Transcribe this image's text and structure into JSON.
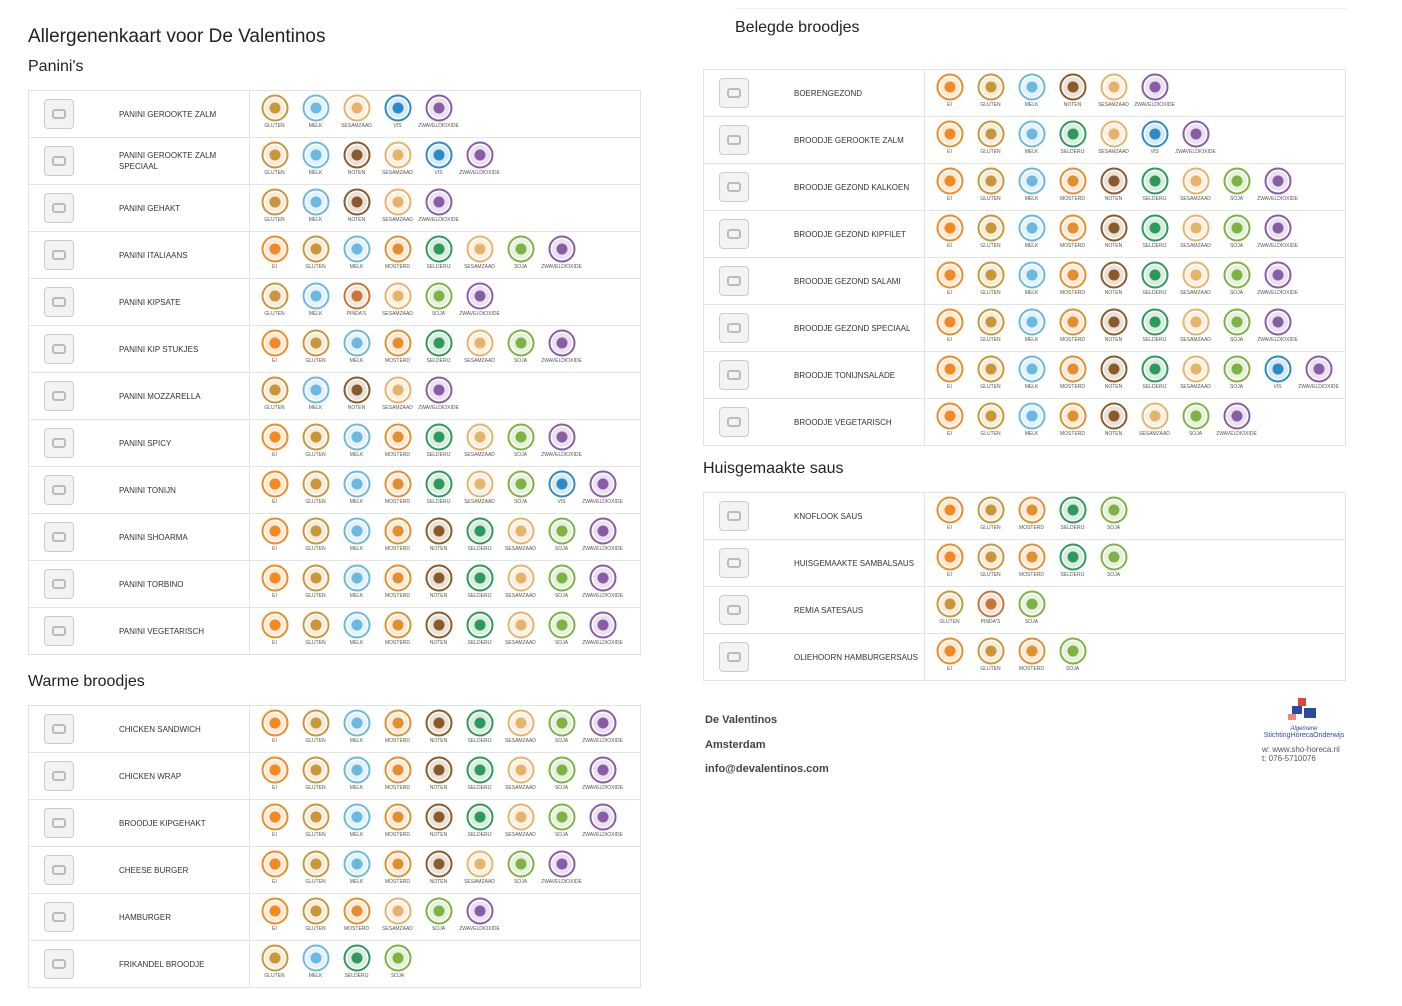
{
  "title": "Allergenenkaart voor De Valentinos",
  "icon_colors": {
    "EI": "#f08a24",
    "GLUTEN": "#c9973a",
    "MELK": "#6bb8e0",
    "MOSTERD": "#e2902f",
    "NOTEN": "#8b5a2b",
    "SELDERIJ": "#2c9a5a",
    "SESAMZAAD": "#e5b36a",
    "SOJA": "#7cb342",
    "VIS": "#2a8bc8",
    "ZWAVELDIOXIDE": "#8a5ca8",
    "PINDA'S": "#c8733a"
  },
  "sections": [
    {
      "name": "Panini's",
      "items": [
        {
          "name": "PANINI GEROOKTE ZALM",
          "allergens": [
            "GLUTEN",
            "MELK",
            "SESAMZAAD",
            "VIS",
            "ZWAVELDIOXIDE"
          ]
        },
        {
          "name": "PANINI GEROOKTE ZALM SPECIAAL",
          "allergens": [
            "GLUTEN",
            "MELK",
            "NOTEN",
            "SESAMZAAD",
            "VIS",
            "ZWAVELDIOXIDE"
          ]
        },
        {
          "name": "PANINI GEHAKT",
          "allergens": [
            "GLUTEN",
            "MELK",
            "NOTEN",
            "SESAMZAAD",
            "ZWAVELDIOXIDE"
          ]
        },
        {
          "name": "PANINI ITALIAANS",
          "allergens": [
            "EI",
            "GLUTEN",
            "MELK",
            "MOSTERD",
            "SELDERIJ",
            "SESAMZAAD",
            "SOJA",
            "ZWAVELDIOXIDE"
          ]
        },
        {
          "name": "PANINI KIPSATE",
          "allergens": [
            "GLUTEN",
            "MELK",
            "PINDA'S",
            "SESAMZAAD",
            "SOJA",
            "ZWAVELDIOXIDE"
          ]
        },
        {
          "name": "PANINI KIP STUKJES",
          "allergens": [
            "EI",
            "GLUTEN",
            "MELK",
            "MOSTERD",
            "SELDERIJ",
            "SESAMZAAD",
            "SOJA",
            "ZWAVELDIOXIDE"
          ]
        },
        {
          "name": "PANINI MOZZARELLA",
          "allergens": [
            "GLUTEN",
            "MELK",
            "NOTEN",
            "SESAMZAAD",
            "ZWAVELDIOXIDE"
          ]
        },
        {
          "name": "PANINI SPICY",
          "allergens": [
            "EI",
            "GLUTEN",
            "MELK",
            "MOSTERD",
            "SELDERIJ",
            "SESAMZAAD",
            "SOJA",
            "ZWAVELDIOXIDE"
          ]
        },
        {
          "name": "PANINI TONIJN",
          "allergens": [
            "EI",
            "GLUTEN",
            "MELK",
            "MOSTERD",
            "SELDERIJ",
            "SESAMZAAD",
            "SOJA",
            "VIS",
            "ZWAVELDIOXIDE"
          ]
        },
        {
          "name": "PANINI SHOARMA",
          "allergens": [
            "EI",
            "GLUTEN",
            "MELK",
            "MOSTERD",
            "NOTEN",
            "SELDERIJ",
            "SESAMZAAD",
            "SOJA",
            "ZWAVELDIOXIDE"
          ]
        },
        {
          "name": "PANINI TORBINO",
          "allergens": [
            "EI",
            "GLUTEN",
            "MELK",
            "MOSTERD",
            "NOTEN",
            "SELDERIJ",
            "SESAMZAAD",
            "SOJA",
            "ZWAVELDIOXIDE"
          ]
        },
        {
          "name": "PANINI VEGETARISCH",
          "allergens": [
            "EI",
            "GLUTEN",
            "MELK",
            "MOSTERD",
            "NOTEN",
            "SELDERIJ",
            "SESAMZAAD",
            "SOJA",
            "ZWAVELDIOXIDE"
          ]
        }
      ]
    },
    {
      "name": "Warme broodjes",
      "items": [
        {
          "name": "CHICKEN SANDWICH",
          "allergens": [
            "EI",
            "GLUTEN",
            "MELK",
            "MOSTERD",
            "NOTEN",
            "SELDERIJ",
            "SESAMZAAD",
            "SOJA",
            "ZWAVELDIOXIDE"
          ]
        },
        {
          "name": "CHICKEN WRAP",
          "allergens": [
            "EI",
            "GLUTEN",
            "MELK",
            "MOSTERD",
            "NOTEN",
            "SELDERIJ",
            "SESAMZAAD",
            "SOJA",
            "ZWAVELDIOXIDE"
          ]
        },
        {
          "name": "BROODJE KIPGEHAKT",
          "allergens": [
            "EI",
            "GLUTEN",
            "MELK",
            "MOSTERD",
            "NOTEN",
            "SELDERIJ",
            "SESAMZAAD",
            "SOJA",
            "ZWAVELDIOXIDE"
          ]
        },
        {
          "name": "CHEESE BURGER",
          "allergens": [
            "EI",
            "GLUTEN",
            "MELK",
            "MOSTERD",
            "NOTEN",
            "SESAMZAAD",
            "SOJA",
            "ZWAVELDIOXIDE"
          ]
        },
        {
          "name": "HAMBURGER",
          "allergens": [
            "EI",
            "GLUTEN",
            "MOSTERD",
            "SESAMZAAD",
            "SOJA",
            "ZWAVELDIOXIDE"
          ]
        },
        {
          "name": "FRIKANDEL BROODJE",
          "allergens": [
            "GLUTEN",
            "MELK",
            "SELDERIJ",
            "SOJA"
          ]
        }
      ]
    },
    {
      "name": "Belegde broodjes",
      "items": [
        {
          "name": "BOERENGEZOND",
          "allergens": [
            "EI",
            "GLUTEN",
            "MELK",
            "NOTEN",
            "SESAMZAAD",
            "ZWAVELDIOXIDE"
          ]
        },
        {
          "name": "BROODJE GEROOKTE ZALM",
          "allergens": [
            "EI",
            "GLUTEN",
            "MELK",
            "SELDERIJ",
            "SESAMZAAD",
            "VIS",
            "ZWAVELDIOXIDE"
          ]
        },
        {
          "name": "BROODJE GEZOND KALKOEN",
          "allergens": [
            "EI",
            "GLUTEN",
            "MELK",
            "MOSTERD",
            "NOTEN",
            "SELDERIJ",
            "SESAMZAAD",
            "SOJA",
            "ZWAVELDIOXIDE"
          ]
        },
        {
          "name": "BROODJE GEZOND KIPFILET",
          "allergens": [
            "EI",
            "GLUTEN",
            "MELK",
            "MOSTERD",
            "NOTEN",
            "SELDERIJ",
            "SESAMZAAD",
            "SOJA",
            "ZWAVELDIOXIDE"
          ]
        },
        {
          "name": "BROODJE GEZOND SALAMI",
          "allergens": [
            "EI",
            "GLUTEN",
            "MELK",
            "MOSTERD",
            "NOTEN",
            "SELDERIJ",
            "SESAMZAAD",
            "SOJA",
            "ZWAVELDIOXIDE"
          ]
        },
        {
          "name": "BROODJE GEZOND SPECIAAL",
          "allergens": [
            "EI",
            "GLUTEN",
            "MELK",
            "MOSTERD",
            "NOTEN",
            "SELDERIJ",
            "SESAMZAAD",
            "SOJA",
            "ZWAVELDIOXIDE"
          ]
        },
        {
          "name": "BROODJE TONIJNSALADE",
          "allergens": [
            "EI",
            "GLUTEN",
            "MELK",
            "MOSTERD",
            "NOTEN",
            "SELDERIJ",
            "SESAMZAAD",
            "SOJA",
            "VIS",
            "ZWAVELDIOXIDE"
          ]
        },
        {
          "name": "BROODJE VEGETARISCH",
          "allergens": [
            "EI",
            "GLUTEN",
            "MELK",
            "MOSTERD",
            "NOTEN",
            "SESAMZAAD",
            "SOJA",
            "ZWAVELDIOXIDE"
          ]
        }
      ]
    },
    {
      "name": "Huisgemaakte saus",
      "items": [
        {
          "name": "KNOFLOOK SAUS",
          "allergens": [
            "EI",
            "GLUTEN",
            "MOSTERD",
            "SELDERIJ",
            "SOJA"
          ]
        },
        {
          "name": "HUISGEMAAKTE SAMBALSAUS",
          "allergens": [
            "EI",
            "GLUTEN",
            "MOSTERD",
            "SELDERIJ",
            "SOJA"
          ]
        },
        {
          "name": "REMIA SATESAUS",
          "allergens": [
            "GLUTEN",
            "PINDA'S",
            "SOJA"
          ]
        },
        {
          "name": "OLIEHOORN HAMBURGERSAUS",
          "allergens": [
            "EI",
            "GLUTEN",
            "MOSTERD",
            "SOJA"
          ]
        }
      ]
    }
  ],
  "footer": {
    "lines": [
      "De Valentinos",
      "Amsterdam",
      "info@devalentinos.com"
    ],
    "logo": {
      "small": "Algemene",
      "name": "StichtingHorecaOnderwijs",
      "web": "w: www.sho-horeca.nl",
      "phone": "t: 076-5710076"
    }
  }
}
